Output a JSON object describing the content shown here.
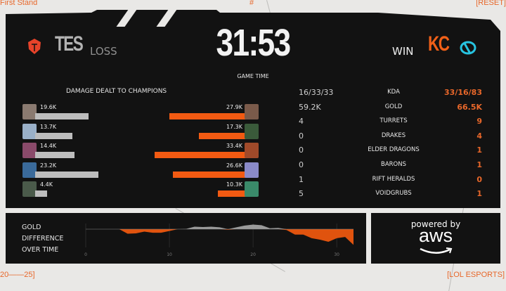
{
  "corners": {
    "top_left": "First Stand",
    "top_center": "#",
    "top_right": "[RESET]",
    "bottom_left": "20——25]",
    "bottom_right": "[LOL ESPORTS]"
  },
  "header": {
    "game_time": "31:53",
    "game_time_label": "GAME TIME",
    "left_team": {
      "name": "TES",
      "result": "LOSS",
      "color": "#e8432a"
    },
    "right_team": {
      "name": "KC",
      "result": "WIN",
      "color": "#f06018",
      "logo_color": "#27c3e0"
    }
  },
  "damage": {
    "title": "DAMAGE DEALT TO CHAMPIONS",
    "left": [
      {
        "value": "19.6K",
        "k": 19.6
      },
      {
        "value": "13.7K",
        "k": 13.7
      },
      {
        "value": "14.4K",
        "k": 14.4
      },
      {
        "value": "23.2K",
        "k": 23.2
      },
      {
        "value": "4.4K",
        "k": 4.4
      }
    ],
    "right": [
      {
        "value": "27.9K",
        "k": 27.9
      },
      {
        "value": "17.3K",
        "k": 17.3
      },
      {
        "value": "33.4K",
        "k": 33.4
      },
      {
        "value": "26.6K",
        "k": 26.6
      },
      {
        "value": "10.3K",
        "k": 10.3
      }
    ],
    "left_bar_color": "#bdbdbd",
    "right_bar_color": "#f25a12"
  },
  "stats": [
    {
      "label": "KDA",
      "left": "16/33/33",
      "right": "33/16/83"
    },
    {
      "label": "GOLD",
      "left": "59.2K",
      "right": "66.5K"
    },
    {
      "label": "TURRETS",
      "left": "4",
      "right": "9"
    },
    {
      "label": "DRAKES",
      "left": "0",
      "right": "4"
    },
    {
      "label": "ELDER DRAGONS",
      "left": "0",
      "right": "1"
    },
    {
      "label": "BARONS",
      "left": "0",
      "right": "1"
    },
    {
      "label": "RIFT HERALDS",
      "left": "1",
      "right": "0"
    },
    {
      "label": "VOIDGRUBS",
      "left": "5",
      "right": "1"
    }
  ],
  "gold_chart": {
    "title_lines": [
      "GOLD",
      "DIFFERENCE",
      "OVER TIME"
    ],
    "chart_data": {
      "type": "area",
      "x_ticks": [
        "0",
        "10",
        "20",
        "30"
      ],
      "xlim": [
        0,
        32
      ],
      "x": [
        0,
        1,
        2,
        3,
        4,
        5,
        6,
        7,
        8,
        9,
        10,
        11,
        12,
        13,
        14,
        15,
        16,
        17,
        18,
        19,
        20,
        21,
        22,
        23,
        24,
        25,
        26,
        27,
        28,
        29,
        30,
        31,
        32
      ],
      "values": [
        0,
        0,
        0,
        0,
        0,
        -1.5,
        -1.4,
        -0.8,
        -1.2,
        -1.2,
        -0.6,
        0,
        0.1,
        0.8,
        0.7,
        0.8,
        0.6,
        -0.2,
        0.6,
        1.2,
        1.5,
        1.3,
        0.3,
        0.4,
        -0.3,
        -1.8,
        -1.8,
        -3,
        -3.5,
        -4.2,
        -3,
        -2.6,
        -5.2
      ],
      "positive_color": "#9a9a9a",
      "negative_color": "#e0530e",
      "grid": true
    }
  },
  "sponsor": {
    "line1": "powered by",
    "line2": "aws"
  }
}
